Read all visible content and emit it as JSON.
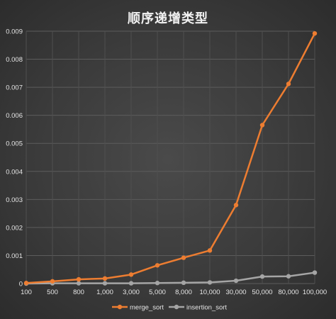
{
  "chart_data": {
    "type": "line",
    "title": "顺序递增类型",
    "xlabel": "",
    "ylabel": "",
    "categories": [
      "100",
      "500",
      "800",
      "1,000",
      "3,000",
      "5,000",
      "8,000",
      "10,000",
      "30,000",
      "50,000",
      "80,000",
      "100,000"
    ],
    "y_ticks": [
      "0",
      "0.001",
      "0.002",
      "0.003",
      "0.004",
      "0.005",
      "0.006",
      "0.007",
      "0.008",
      "0.009"
    ],
    "ylim": [
      0,
      0.009
    ],
    "grid": true,
    "legend_position": "bottom",
    "series": [
      {
        "name": "merge_sort",
        "color": "#ed7d31",
        "values": [
          2e-05,
          8e-05,
          0.00015,
          0.00018,
          0.00032,
          0.00065,
          0.00092,
          0.00118,
          0.0028,
          0.00565,
          0.00712,
          0.00892
        ]
      },
      {
        "name": "insertion_sort",
        "color": "#a5a5a5",
        "values": [
          0.0,
          1e-05,
          1e-05,
          1e-05,
          1e-05,
          2e-05,
          3e-05,
          4e-05,
          0.0001,
          0.00025,
          0.00026,
          0.00039
        ]
      }
    ]
  }
}
